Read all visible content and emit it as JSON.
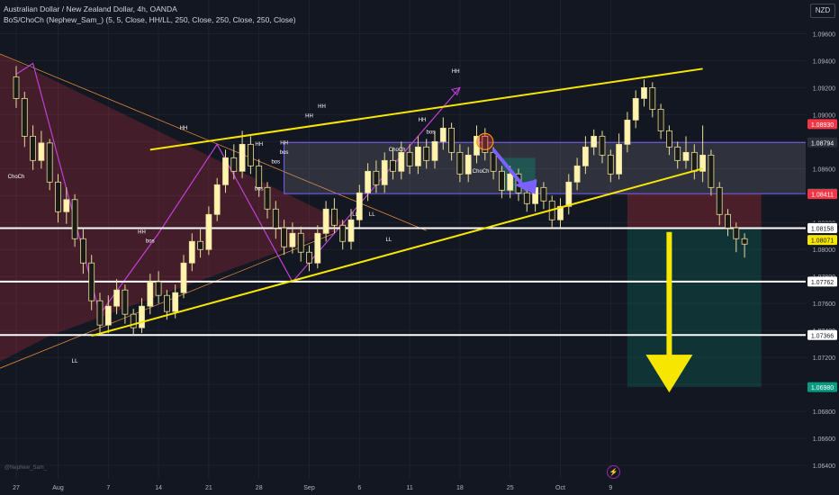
{
  "header": {
    "title": "Australian Dollar / New Zealand Dollar, 4h, OANDA",
    "indicator": "BoS/ChoCh (Nephew_Sam_) (5, 5, Close, HH/LL, 250, Close, 250, Close, 250, Close)"
  },
  "currency_button": "NZD",
  "credit": "@Nephew_Sam_",
  "clock_icon": "lightning-icon",
  "chart_data": {
    "type": "candlestick",
    "ylim": [
      1.063,
      1.0985
    ],
    "y_ticks": [
      "1.09600",
      "1.09400",
      "1.09200",
      "1.09000",
      "1.08800",
      "1.08600",
      "1.08400",
      "1.08200",
      "1.08000",
      "1.07800",
      "1.07600",
      "1.07400",
      "1.07200",
      "1.07000",
      "1.06800",
      "1.06600",
      "1.06400"
    ],
    "x_ticks": [
      "27",
      "Aug",
      "7",
      "14",
      "21",
      "28",
      "Sep",
      "6",
      "11",
      "18",
      "25",
      "Oct",
      "9"
    ],
    "price_labels": [
      {
        "text": "1.08930",
        "value": 1.0893,
        "color": "#f23645"
      },
      {
        "text": "1.08794",
        "value": 1.08794,
        "color": "#2a2e39"
      },
      {
        "text": "1.08414",
        "value": 1.08414,
        "color": "#089981"
      },
      {
        "text": "1.08411",
        "value": 1.08411,
        "color": "#f23645"
      },
      {
        "text": "1.08166",
        "value": 1.08166,
        "color": "#2a2e39"
      },
      {
        "text": "1.08158",
        "value": 1.08158,
        "color": "#ffffff"
      },
      {
        "text": "1.08071",
        "value": 1.08071,
        "color": "#f7e600"
      },
      {
        "text": "1.07762",
        "value": 1.07762,
        "color": "#ffffff"
      },
      {
        "text": "1.07366",
        "value": 1.07366,
        "color": "#ffffff"
      },
      {
        "text": "1.06980",
        "value": 1.0698,
        "color": "#089981"
      }
    ],
    "horizontal_levels": [
      1.08158,
      1.07762,
      1.07366
    ],
    "structure_labels": [
      {
        "text": "HH",
        "x": "16 Jul",
        "y": 1.0937,
        "color": "#ffffff"
      },
      {
        "text": "ChoCh",
        "x": "27 Jul",
        "y": 1.0853,
        "color": "#ffffff"
      },
      {
        "text": "LL",
        "x": "3 Aug",
        "y": 1.0716,
        "color": "#ffffff"
      },
      {
        "text": "HH",
        "x": "11 Aug",
        "y": 1.0812,
        "color": "#ffffff"
      },
      {
        "text": "bos",
        "x": "12 Aug",
        "y": 1.0805,
        "color": "#ffffff"
      },
      {
        "text": "HH",
        "x": "16 Aug",
        "y": 1.0889,
        "color": "#ffffff"
      },
      {
        "text": "HH",
        "x": "25 Aug",
        "y": 1.0877,
        "color": "#ffffff"
      },
      {
        "text": "bos",
        "x": "25 Aug",
        "y": 1.0844,
        "color": "#ffffff"
      },
      {
        "text": "bos",
        "x": "27 Aug",
        "y": 1.0864,
        "color": "#ffffff"
      },
      {
        "text": "HH",
        "x": "28 Aug",
        "y": 1.0878,
        "color": "#ffffff"
      },
      {
        "text": "bos",
        "x": "28 Aug",
        "y": 1.0871,
        "color": "#ffffff"
      },
      {
        "text": "HH",
        "x": "31 Aug",
        "y": 1.0898,
        "color": "#ffffff"
      },
      {
        "text": "HH",
        "x": "2 Sep",
        "y": 1.0905,
        "color": "#ffffff"
      },
      {
        "text": "LL",
        "x": "6 Sep",
        "y": 1.0825,
        "color": "#ffffff"
      },
      {
        "text": "LL",
        "x": "8 Sep",
        "y": 1.0825,
        "color": "#ffffff"
      },
      {
        "text": "LL",
        "x": "10 Sep",
        "y": 1.0806,
        "color": "#ffffff"
      },
      {
        "text": "ChoCh",
        "x": "11 Sep",
        "y": 1.0873,
        "color": "#ffffff"
      },
      {
        "text": "HH",
        "x": "14 Sep",
        "y": 1.0895,
        "color": "#ffffff"
      },
      {
        "text": "bos",
        "x": "15 Sep",
        "y": 1.0886,
        "color": "#ffffff"
      },
      {
        "text": "HH",
        "x": "18 Sep",
        "y": 1.0931,
        "color": "#ffffff"
      },
      {
        "text": "ChoCh",
        "x": "21 Sep",
        "y": 1.0857,
        "color": "#ffffff"
      }
    ],
    "series": [
      {
        "name": "",
        "values": [
          [
            1.0928,
            1.0912,
            1.0936,
            1.0905
          ],
          [
            1.0912,
            1.0884,
            1.0917,
            1.0876
          ],
          [
            1.0884,
            1.0866,
            1.0892,
            1.0859
          ],
          [
            1.0866,
            1.0879,
            1.0888,
            1.086
          ],
          [
            1.0879,
            1.085,
            1.0882,
            1.0844
          ],
          [
            1.085,
            1.0828,
            1.0856,
            1.082
          ],
          [
            1.0828,
            1.0837,
            1.0846,
            1.0819
          ],
          [
            1.0837,
            1.0808,
            1.0841,
            1.0802
          ],
          [
            1.0808,
            1.079,
            1.0815,
            1.0782
          ],
          [
            1.079,
            1.0762,
            1.0796,
            1.0755
          ],
          [
            1.0762,
            1.0744,
            1.0768,
            1.0737
          ],
          [
            1.0744,
            1.0758,
            1.0766,
            1.0738
          ],
          [
            1.0758,
            1.077,
            1.0778,
            1.0752
          ],
          [
            1.077,
            1.0752,
            1.0774,
            1.0745
          ],
          [
            1.0752,
            1.0742,
            1.0756,
            1.0736
          ],
          [
            1.0742,
            1.0758,
            1.0764,
            1.0738
          ],
          [
            1.0758,
            1.0776,
            1.0782,
            1.0752
          ],
          [
            1.0776,
            1.0766,
            1.0784,
            1.076
          ],
          [
            1.0766,
            1.0754,
            1.077,
            1.0748
          ],
          [
            1.0754,
            1.0768,
            1.0774,
            1.0749
          ],
          [
            1.0768,
            1.079,
            1.0796,
            1.0764
          ],
          [
            1.079,
            1.0806,
            1.0812,
            1.0784
          ],
          [
            1.0806,
            1.08,
            1.0815,
            1.0794
          ],
          [
            1.08,
            1.0826,
            1.0832,
            1.0796
          ],
          [
            1.0826,
            1.0848,
            1.0853,
            1.0821
          ],
          [
            1.0848,
            1.0868,
            1.0874,
            1.0842
          ],
          [
            1.0868,
            1.0858,
            1.0878,
            1.0852
          ],
          [
            1.0858,
            1.0878,
            1.0888,
            1.0853
          ],
          [
            1.0878,
            1.0862,
            1.0884,
            1.0856
          ],
          [
            1.0862,
            1.0846,
            1.0867,
            1.0839
          ],
          [
            1.0846,
            1.083,
            1.085,
            1.0823
          ],
          [
            1.083,
            1.0816,
            1.0836,
            1.0808
          ],
          [
            1.0816,
            1.0802,
            1.0822,
            1.0796
          ],
          [
            1.0802,
            1.0812,
            1.082,
            1.0797
          ],
          [
            1.0812,
            1.0798,
            1.0817,
            1.0791
          ],
          [
            1.0798,
            1.079,
            1.0803,
            1.0784
          ],
          [
            1.079,
            1.0812,
            1.0818,
            1.0786
          ],
          [
            1.0812,
            1.083,
            1.0836,
            1.0806
          ],
          [
            1.083,
            1.0818,
            1.0838,
            1.0812
          ],
          [
            1.0818,
            1.0806,
            1.0822,
            1.08
          ],
          [
            1.0806,
            1.0822,
            1.083,
            1.08
          ],
          [
            1.0822,
            1.0842,
            1.0848,
            1.0816
          ],
          [
            1.0842,
            1.0858,
            1.0864,
            1.0836
          ],
          [
            1.0858,
            1.0848,
            1.0866,
            1.0842
          ],
          [
            1.0848,
            1.0866,
            1.0872,
            1.0842
          ],
          [
            1.0866,
            1.0858,
            1.0875,
            1.0852
          ],
          [
            1.0858,
            1.0872,
            1.088,
            1.0852
          ],
          [
            1.0872,
            1.0862,
            1.0878,
            1.0856
          ],
          [
            1.0862,
            1.0876,
            1.0884,
            1.0856
          ],
          [
            1.0876,
            1.0866,
            1.0882,
            1.086
          ],
          [
            1.0866,
            1.088,
            1.0888,
            1.086
          ],
          [
            1.088,
            1.089,
            1.0898,
            1.0874
          ],
          [
            1.089,
            1.0872,
            1.0894,
            1.0866
          ],
          [
            1.0872,
            1.0856,
            1.0878,
            1.085
          ],
          [
            1.0856,
            1.087,
            1.0876,
            1.085
          ],
          [
            1.087,
            1.0884,
            1.0892,
            1.0864
          ],
          [
            1.0884,
            1.0872,
            1.089,
            1.0866
          ],
          [
            1.0872,
            1.0858,
            1.0876,
            1.0852
          ],
          [
            1.0858,
            1.0844,
            1.0862,
            1.0838
          ],
          [
            1.0844,
            1.0856,
            1.0862,
            1.0838
          ],
          [
            1.0856,
            1.0842,
            1.086,
            1.0836
          ],
          [
            1.0842,
            1.0834,
            1.0847,
            1.0828
          ],
          [
            1.0834,
            1.0846,
            1.0852,
            1.0828
          ],
          [
            1.0846,
            1.0836,
            1.085,
            1.083
          ],
          [
            1.0836,
            1.0822,
            1.084,
            1.0816
          ],
          [
            1.0822,
            1.0832,
            1.0838,
            1.0816
          ],
          [
            1.0832,
            1.085,
            1.0856,
            1.0826
          ],
          [
            1.085,
            1.0862,
            1.0868,
            1.0844
          ],
          [
            1.0862,
            1.0876,
            1.0884,
            1.0856
          ],
          [
            1.0876,
            1.0884,
            1.0889,
            1.087
          ],
          [
            1.0884,
            1.087,
            1.0888,
            1.0864
          ],
          [
            1.087,
            1.0856,
            1.0874,
            1.085
          ],
          [
            1.0856,
            1.0878,
            1.0886,
            1.0852
          ],
          [
            1.0878,
            1.0896,
            1.0902,
            1.0872
          ],
          [
            1.0896,
            1.0912,
            1.0918,
            1.089
          ],
          [
            1.0912,
            1.092,
            1.0926,
            1.0906
          ],
          [
            1.092,
            1.0904,
            1.0924,
            1.0898
          ],
          [
            1.0904,
            1.0888,
            1.0908,
            1.0882
          ],
          [
            1.0888,
            1.0876,
            1.0892,
            1.087
          ],
          [
            1.0876,
            1.0866,
            1.088,
            1.086
          ],
          [
            1.0866,
            1.0872,
            1.0884,
            1.086
          ],
          [
            1.0872,
            1.0858,
            1.0878,
            1.0852
          ],
          [
            1.0858,
            1.087,
            1.0892,
            1.085
          ],
          [
            1.087,
            1.0846,
            1.0874,
            1.084
          ],
          [
            1.0846,
            1.0826,
            1.085,
            1.0818
          ],
          [
            1.0826,
            1.0816,
            1.083,
            1.081
          ],
          [
            1.0816,
            1.0808,
            1.082,
            1.0798
          ],
          [
            1.0808,
            1.0804,
            1.0812,
            1.0794
          ]
        ]
      }
    ],
    "x_tick_indices": [
      0,
      5,
      11,
      17,
      23,
      29,
      35,
      41,
      47,
      53,
      59,
      65,
      71
    ]
  }
}
